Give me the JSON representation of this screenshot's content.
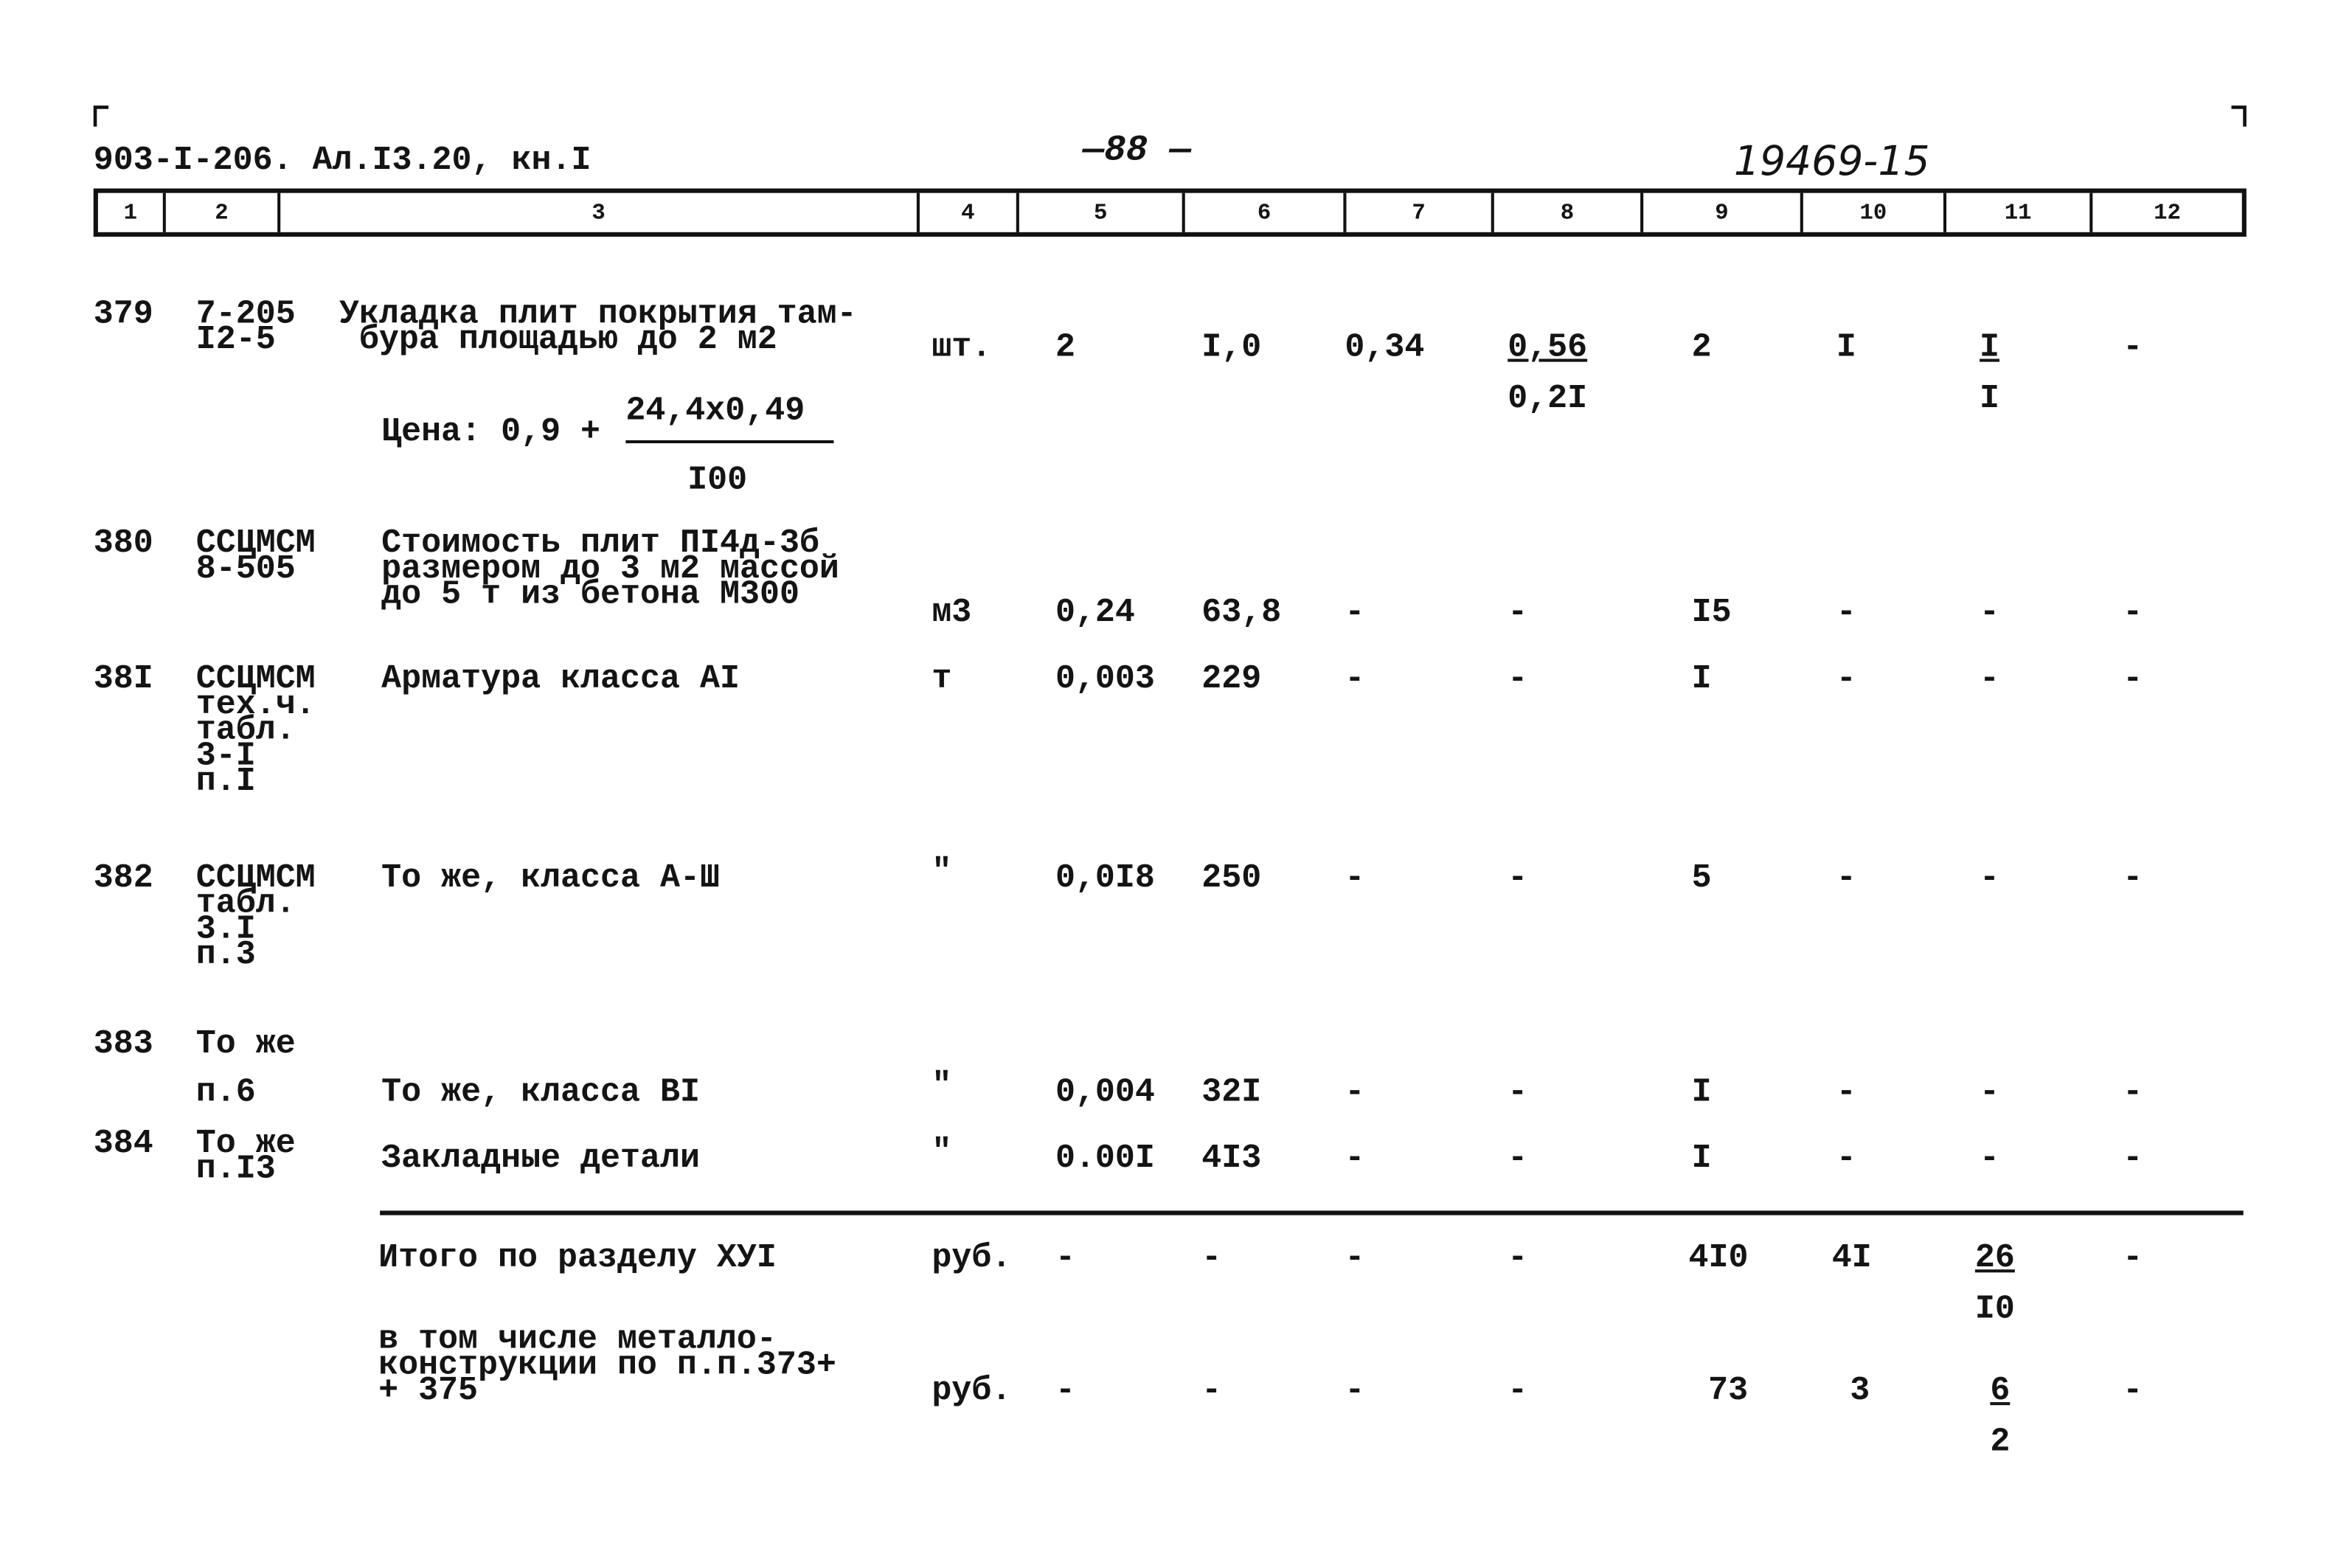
{
  "header": {
    "doc_code": "903-I-206. Ал.I3.20, кн.I",
    "page_number": "—88 —",
    "handwritten_number": "19469-15"
  },
  "columns": [
    "1",
    "2",
    "3",
    "4",
    "5",
    "6",
    "7",
    "8",
    "9",
    "10",
    "11",
    "12"
  ],
  "rows": [
    {
      "no": "379",
      "code": "7-205\nI2-5",
      "desc": "Укладка плит покрытия там-\n бура площадью до 2 м2",
      "unit": "шт.",
      "c5": "2",
      "c6": "I,0",
      "c7": "0,34",
      "c8_top": "0,56",
      "c8_bottom": "0,2I",
      "c9": "2",
      "c10": "I",
      "c11_top": "I",
      "c11_bottom": "I",
      "c12": "-",
      "price": {
        "label": "Цена: 0,9 +",
        "numerator": "24,4x0,49",
        "denominator": "I00"
      }
    },
    {
      "no": "380",
      "code": "ССЦМСМ\n8-505",
      "desc": "Стоимость плит ПI4д-3б\nразмером до 3 м2 массой\nдо 5 т из бетона М300",
      "unit": "м3",
      "c5": "0,24",
      "c6": "63,8",
      "c7": "-",
      "c8": "-",
      "c9": "I5",
      "c10": "-",
      "c11": "-",
      "c12": "-"
    },
    {
      "no": "38I",
      "code": "ССЦМСМ\nтех.ч.\nтабл.\n3-I\nп.I",
      "desc": "Арматура класса АI",
      "unit": "т",
      "c5": "0,003",
      "c6": "229",
      "c7": "-",
      "c8": "-",
      "c9": "I",
      "c10": "-",
      "c11": "-",
      "c12": "-"
    },
    {
      "no": "382",
      "code": "ССЦМСМ\nтабл.\n3.I\nп.3",
      "desc": "То же, класса А-Ш",
      "unit": "\"",
      "c5": "0,0I8",
      "c6": "250",
      "c7": "-",
      "c8": "-",
      "c9": "5",
      "c10": "-",
      "c11": "-",
      "c12": "-"
    },
    {
      "no": "383",
      "code": "То же",
      "code2": "п.6",
      "desc": "То же, класса ВI",
      "unit": "\"",
      "c5": "0,004",
      "c6": "32I",
      "c7": "-",
      "c8": "-",
      "c9": "I",
      "c10": "-",
      "c11": "-",
      "c12": "-"
    },
    {
      "no": "384",
      "code": "То же\nп.I3",
      "desc": "Закладные детали",
      "unit": "\"",
      "c5": "0.00I",
      "c6": "4I3",
      "c7": "-",
      "c8": "-",
      "c9": "I",
      "c10": "-",
      "c11": "-",
      "c12": "-"
    }
  ],
  "totals": [
    {
      "desc": "Итого по разделу ХУI",
      "unit": "руб.",
      "c5": "-",
      "c6": "-",
      "c7": "-",
      "c8": "-",
      "c9": "4I0",
      "c10": "4I",
      "c11_top": "26",
      "c11_bottom": "I0",
      "c12": "-"
    },
    {
      "desc": "в том числе металло-\nконструкции по п.п.373+\n+ 375",
      "unit": "руб.",
      "c5": "-",
      "c6": "-",
      "c7": "-",
      "c8": "-",
      "c9": "73",
      "c10": "3",
      "c11_top": "6",
      "c11_bottom": "2",
      "c12": "-"
    }
  ]
}
